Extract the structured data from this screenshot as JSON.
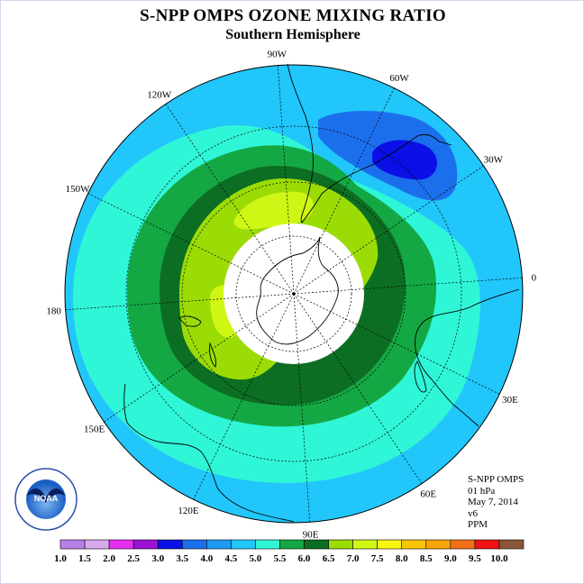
{
  "title": "S-NPP OMPS OZONE MIXING RATIO",
  "subtitle": "Southern Hemisphere",
  "longitude_labels": [
    "90W",
    "60W",
    "30W",
    "0",
    "30E",
    "60E",
    "90E",
    "120E",
    "150E",
    "180",
    "150W",
    "120W"
  ],
  "info": {
    "instrument": "S-NPP OMPS",
    "pressure": "01 hPa",
    "date": "May 7, 2014",
    "version": "v6",
    "units": "PPM"
  },
  "logo_text": "NOAA",
  "colorbar": {
    "labels": [
      "1.0",
      "1.5",
      "2.0",
      "2.5",
      "3.0",
      "3.5",
      "4.0",
      "4.5",
      "5.0",
      "5.5",
      "6.0",
      "6.5",
      "7.0",
      "7.5",
      "8.0",
      "8.5",
      "9.0",
      "9.5",
      "10.0"
    ],
    "colors": [
      "#b77fe8",
      "#d7a9ef",
      "#e62ef0",
      "#9a12d6",
      "#0a10e6",
      "#1c6fec",
      "#1e99f2",
      "#21c6fb",
      "#2ff6d6",
      "#14a844",
      "#0c6e22",
      "#9bdc07",
      "#cff715",
      "#faf613",
      "#f7c50c",
      "#f7a40b",
      "#f2701a",
      "#ef1212",
      "#8a5638"
    ]
  },
  "map_colors": {
    "ppm_3_0": "#0a10e6",
    "ppm_3_5": "#1c6fec",
    "ppm_4_0": "#1e99f2",
    "ppm_4_5": "#21c6fb",
    "ppm_5_0": "#2ff6d6",
    "ppm_5_5": "#14a844",
    "ppm_6_0": "#0c6e22",
    "ppm_6_5": "#9bdc07",
    "ppm_7_0": "#cff715",
    "no_data": "#ffffff"
  }
}
